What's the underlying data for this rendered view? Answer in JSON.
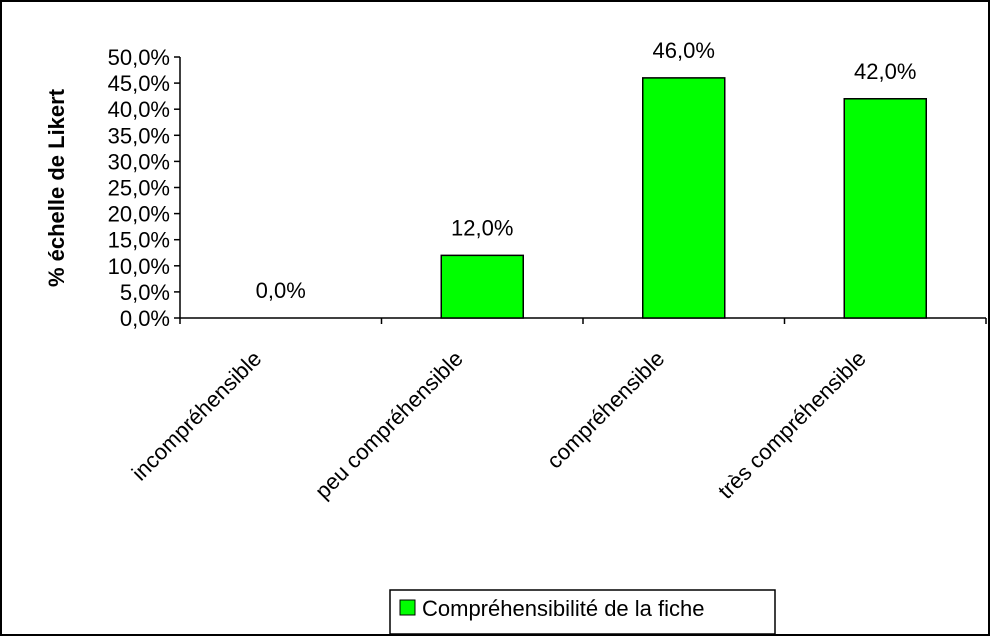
{
  "chart_data": {
    "type": "bar",
    "title": "",
    "xlabel": "",
    "ylabel": "% échelle de Likert",
    "categories": [
      "incompréhensible",
      "peu compréhensible",
      "compréhensible",
      "très compréhensible"
    ],
    "series": [
      {
        "name": "Compréhensibilité de la fiche",
        "values": [
          0.0,
          12.0,
          46.0,
          42.0
        ],
        "data_labels": [
          "0,0%",
          "12,0%",
          "46,0%",
          "42,0%"
        ],
        "color": "#00ff00"
      }
    ],
    "ylim": [
      0,
      50
    ],
    "yticks": [
      0,
      5,
      10,
      15,
      20,
      25,
      30,
      35,
      40,
      45,
      50
    ],
    "ytick_labels": [
      "0,0%",
      "5,0%",
      "10,0%",
      "15,0%",
      "20,0%",
      "25,0%",
      "30,0%",
      "35,0%",
      "40,0%",
      "45,0%",
      "50,0%"
    ],
    "grid": false,
    "legend_position": "bottom",
    "legend_text": "Compréhensibilité de la fiche"
  }
}
